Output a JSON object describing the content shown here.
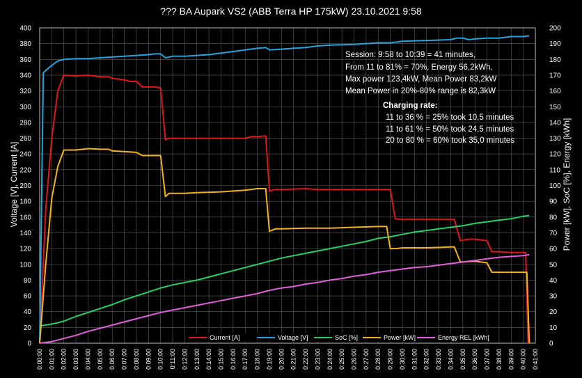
{
  "chart_data": {
    "type": "line",
    "title": "??? BA Aupark VS2 (ABB Terra HP 175kW) 23.10.2021 9:58",
    "ylabel": "Voltage [V], Current [A]",
    "ylabel_right": "Power [kW], SoC [%], Energy [kWh]",
    "ylim": [
      0,
      400
    ],
    "ylim_right": [
      0,
      200
    ],
    "grid": true,
    "legend_position": "bottom",
    "y_ticks": [
      "0",
      "20",
      "40",
      "60",
      "80",
      "100",
      "120",
      "140",
      "160",
      "180",
      "200",
      "220",
      "240",
      "260",
      "280",
      "300",
      "320",
      "340",
      "360",
      "380",
      "400"
    ],
    "y_ticks_right": [
      "0",
      "10",
      "20",
      "30",
      "40",
      "50",
      "60",
      "70",
      "80",
      "90",
      "100",
      "110",
      "120",
      "130",
      "140",
      "150",
      "160",
      "170",
      "180",
      "190",
      "200"
    ],
    "x_ticks": [
      "0:00:00",
      "0:01:00",
      "0:02:00",
      "0:03:00",
      "0:04:00",
      "0:05:00",
      "0:06:00",
      "0:07:00",
      "0:08:00",
      "0:09:00",
      "0:10:00",
      "0:11:00",
      "0:12:00",
      "0:13:00",
      "0:14:00",
      "0:15:00",
      "0:16:00",
      "0:17:00",
      "0:18:00",
      "0:19:00",
      "0:20:00",
      "0:21:00",
      "0:22:00",
      "0:23:00",
      "0:24:00",
      "0:25:00",
      "0:26:00",
      "0:27:00",
      "0:28:00",
      "0:29:00",
      "0:30:00",
      "0:31:00",
      "0:32:00",
      "0:33:00",
      "0:34:00",
      "0:35:00",
      "0:36:00",
      "0:37:00",
      "0:38:00",
      "0:39:00",
      "0:40:00",
      "0:41:00"
    ],
    "series": [
      {
        "name": "Current [A]",
        "color": "#e0161b",
        "axis": "left",
        "points": [
          [
            0,
            0
          ],
          [
            0.5,
            170
          ],
          [
            1,
            260
          ],
          [
            1.5,
            320
          ],
          [
            2,
            340
          ],
          [
            3,
            339
          ],
          [
            4,
            340
          ],
          [
            5,
            338
          ],
          [
            5.7,
            338
          ],
          [
            6,
            336
          ],
          [
            7,
            334
          ],
          [
            7.5,
            332
          ],
          [
            8,
            332
          ],
          [
            8.5,
            325
          ],
          [
            9,
            325
          ],
          [
            9.5,
            325
          ],
          [
            10,
            324
          ],
          [
            10.4,
            258
          ],
          [
            10.7,
            260
          ],
          [
            12,
            260
          ],
          [
            14,
            260
          ],
          [
            16,
            260
          ],
          [
            17,
            260
          ],
          [
            17.5,
            262
          ],
          [
            18,
            262
          ],
          [
            18.7,
            263
          ],
          [
            19,
            193
          ],
          [
            19.5,
            195
          ],
          [
            20,
            195
          ],
          [
            22,
            196
          ],
          [
            23,
            195
          ],
          [
            24,
            195
          ],
          [
            26,
            195
          ],
          [
            27,
            195
          ],
          [
            28,
            195
          ],
          [
            29,
            195
          ],
          [
            29.4,
            158
          ],
          [
            29.8,
            157
          ],
          [
            31,
            157
          ],
          [
            33,
            157
          ],
          [
            34,
            157
          ],
          [
            34.3,
            157
          ],
          [
            34.8,
            130
          ],
          [
            35.5,
            132
          ],
          [
            36,
            132
          ],
          [
            36.5,
            131
          ],
          [
            37,
            130
          ],
          [
            37.4,
            116
          ],
          [
            38,
            116
          ],
          [
            39,
            115
          ],
          [
            40,
            115
          ],
          [
            40.2,
            115
          ],
          [
            40.4,
            0
          ]
        ]
      },
      {
        "name": "Voltage [V]",
        "color": "#22a4e0",
        "axis": "left",
        "points": [
          [
            0,
            0
          ],
          [
            0.3,
            343
          ],
          [
            0.8,
            350
          ],
          [
            1.5,
            358
          ],
          [
            2,
            360
          ],
          [
            3,
            361
          ],
          [
            4,
            361
          ],
          [
            5,
            362
          ],
          [
            6,
            363
          ],
          [
            7,
            364
          ],
          [
            8,
            365
          ],
          [
            9,
            366
          ],
          [
            9.5,
            367
          ],
          [
            10,
            367
          ],
          [
            10.4,
            362
          ],
          [
            11,
            364
          ],
          [
            12,
            364
          ],
          [
            14,
            366
          ],
          [
            16,
            370
          ],
          [
            18,
            374
          ],
          [
            18.7,
            375
          ],
          [
            19,
            372
          ],
          [
            20,
            373
          ],
          [
            21,
            374
          ],
          [
            22,
            375
          ],
          [
            23,
            377
          ],
          [
            24,
            378
          ],
          [
            26,
            379
          ],
          [
            28,
            381
          ],
          [
            29,
            381
          ],
          [
            30,
            383
          ],
          [
            32,
            384
          ],
          [
            34,
            385
          ],
          [
            34.5,
            387
          ],
          [
            35,
            387
          ],
          [
            35.5,
            385
          ],
          [
            36,
            386
          ],
          [
            37,
            387
          ],
          [
            38,
            387
          ],
          [
            39,
            389
          ],
          [
            40,
            389
          ],
          [
            40.5,
            390
          ]
        ]
      },
      {
        "name": "SoC [%]",
        "color": "#23d367",
        "axis": "right",
        "points": [
          [
            0,
            11
          ],
          [
            0.5,
            11.5
          ],
          [
            1,
            12.2
          ],
          [
            1.5,
            13
          ],
          [
            2,
            14
          ],
          [
            3,
            17
          ],
          [
            4,
            19.5
          ],
          [
            5,
            22
          ],
          [
            6,
            24.5
          ],
          [
            7,
            27.5
          ],
          [
            8,
            30
          ],
          [
            9,
            32.5
          ],
          [
            10,
            35
          ],
          [
            11,
            37
          ],
          [
            12,
            38.5
          ],
          [
            13,
            40
          ],
          [
            14,
            42
          ],
          [
            15,
            44
          ],
          [
            16,
            46
          ],
          [
            17,
            48
          ],
          [
            18,
            50
          ],
          [
            19,
            52
          ],
          [
            20,
            54
          ],
          [
            21,
            55.5
          ],
          [
            22,
            57
          ],
          [
            23,
            58.5
          ],
          [
            24,
            60
          ],
          [
            25,
            61.5
          ],
          [
            26,
            63
          ],
          [
            27,
            64.5
          ],
          [
            28,
            66.5
          ],
          [
            29,
            67.5
          ],
          [
            30,
            69
          ],
          [
            31,
            70.5
          ],
          [
            32,
            71.5
          ],
          [
            33,
            72.5
          ],
          [
            34,
            73.5
          ],
          [
            35,
            74.5
          ],
          [
            36,
            76
          ],
          [
            37,
            77
          ],
          [
            38,
            78
          ],
          [
            39,
            79
          ],
          [
            40,
            80.5
          ],
          [
            40.5,
            81
          ]
        ]
      },
      {
        "name": "Power [kW]",
        "color": "#f5b31c",
        "axis": "right",
        "points": [
          [
            0,
            0
          ],
          [
            0.5,
            50
          ],
          [
            1,
            92
          ],
          [
            1.5,
            112
          ],
          [
            2,
            122.5
          ],
          [
            3,
            122.5
          ],
          [
            4,
            123.4
          ],
          [
            5,
            123
          ],
          [
            5.7,
            123
          ],
          [
            6,
            122
          ],
          [
            7,
            121.5
          ],
          [
            8,
            121
          ],
          [
            8.5,
            119
          ],
          [
            9,
            119
          ],
          [
            10,
            119
          ],
          [
            10.4,
            93
          ],
          [
            10.7,
            95
          ],
          [
            12,
            95
          ],
          [
            13,
            95.5
          ],
          [
            15,
            96
          ],
          [
            16,
            96.5
          ],
          [
            17,
            97
          ],
          [
            18,
            98
          ],
          [
            18.7,
            98
          ],
          [
            19,
            71
          ],
          [
            19.5,
            72.5
          ],
          [
            20,
            72.5
          ],
          [
            22,
            73
          ],
          [
            24,
            73
          ],
          [
            26,
            73.5
          ],
          [
            28,
            74
          ],
          [
            28.7,
            74
          ],
          [
            29,
            60
          ],
          [
            29.5,
            60
          ],
          [
            30,
            60.5
          ],
          [
            32,
            60.5
          ],
          [
            34,
            61
          ],
          [
            34.3,
            61
          ],
          [
            34.8,
            51.5
          ],
          [
            36,
            52
          ],
          [
            36.5,
            51.5
          ],
          [
            37,
            51
          ],
          [
            37.4,
            45
          ],
          [
            38,
            45
          ],
          [
            39,
            45
          ],
          [
            40,
            45
          ],
          [
            40.3,
            45
          ],
          [
            40.5,
            0
          ]
        ]
      },
      {
        "name": "Energy REL [kWh]",
        "color": "#e35ddc",
        "axis": "right",
        "points": [
          [
            0,
            0
          ],
          [
            1,
            1
          ],
          [
            2,
            3
          ],
          [
            3,
            5
          ],
          [
            4,
            7.5
          ],
          [
            5,
            9.5
          ],
          [
            6,
            11.5
          ],
          [
            7,
            13.5
          ],
          [
            8,
            15.5
          ],
          [
            9,
            17.5
          ],
          [
            10,
            19.5
          ],
          [
            11,
            21
          ],
          [
            12,
            22.5
          ],
          [
            13,
            24
          ],
          [
            14,
            25.5
          ],
          [
            15,
            27
          ],
          [
            16,
            28.5
          ],
          [
            17,
            30
          ],
          [
            18,
            31.5
          ],
          [
            19,
            33.5
          ],
          [
            20,
            35
          ],
          [
            21,
            36
          ],
          [
            22,
            37.5
          ],
          [
            23,
            38.5
          ],
          [
            24,
            40
          ],
          [
            25,
            41
          ],
          [
            26,
            42.5
          ],
          [
            27,
            43.5
          ],
          [
            28,
            45
          ],
          [
            29,
            46
          ],
          [
            30,
            47
          ],
          [
            31,
            48
          ],
          [
            32,
            48.5
          ],
          [
            33,
            49.5
          ],
          [
            34,
            50.5
          ],
          [
            35,
            51.5
          ],
          [
            36,
            52.5
          ],
          [
            37,
            53.5
          ],
          [
            38,
            54.5
          ],
          [
            39,
            55
          ],
          [
            40,
            55.5
          ],
          [
            40.5,
            56.2
          ]
        ]
      }
    ]
  },
  "annotations": {
    "session_lines": [
      "Session:   9:58 to 10:39 = 41 minutes,",
      "From 11 to 81% = 70%, Energy 56,2kWh,",
      "Max power 123,4kW, Mean Power 83,2kW",
      "Mean Power in 20%-80% range is 82,3kW"
    ],
    "rate_title": "Charging rate:",
    "rate_lines": [
      "11 to 36 % = 25% took 10,5 minutes",
      "11 to 61 % = 50% took 24,5 minutes",
      "20 to 80 % = 60% took 35,0  minutes"
    ]
  }
}
